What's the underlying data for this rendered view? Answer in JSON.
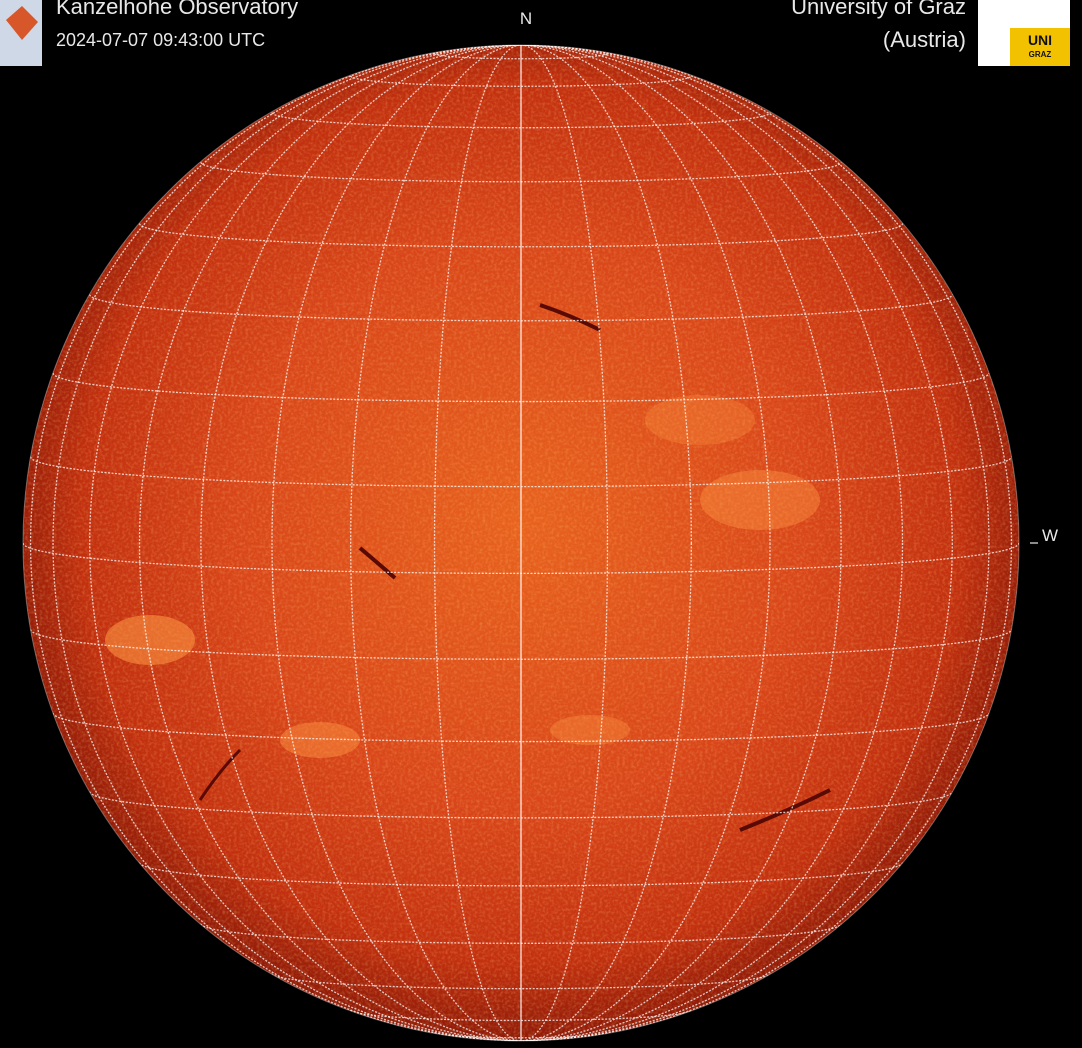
{
  "header": {
    "observatory": "Kanzelhohe Observatory",
    "timestamp": "2024-07-07 09:43:00 UTC",
    "institution": "University of Graz",
    "country": "(Austria)"
  },
  "compass": {
    "north": "N",
    "west": "W"
  },
  "logo": {
    "line1": "UNI",
    "line2": "GRAZ"
  }
}
